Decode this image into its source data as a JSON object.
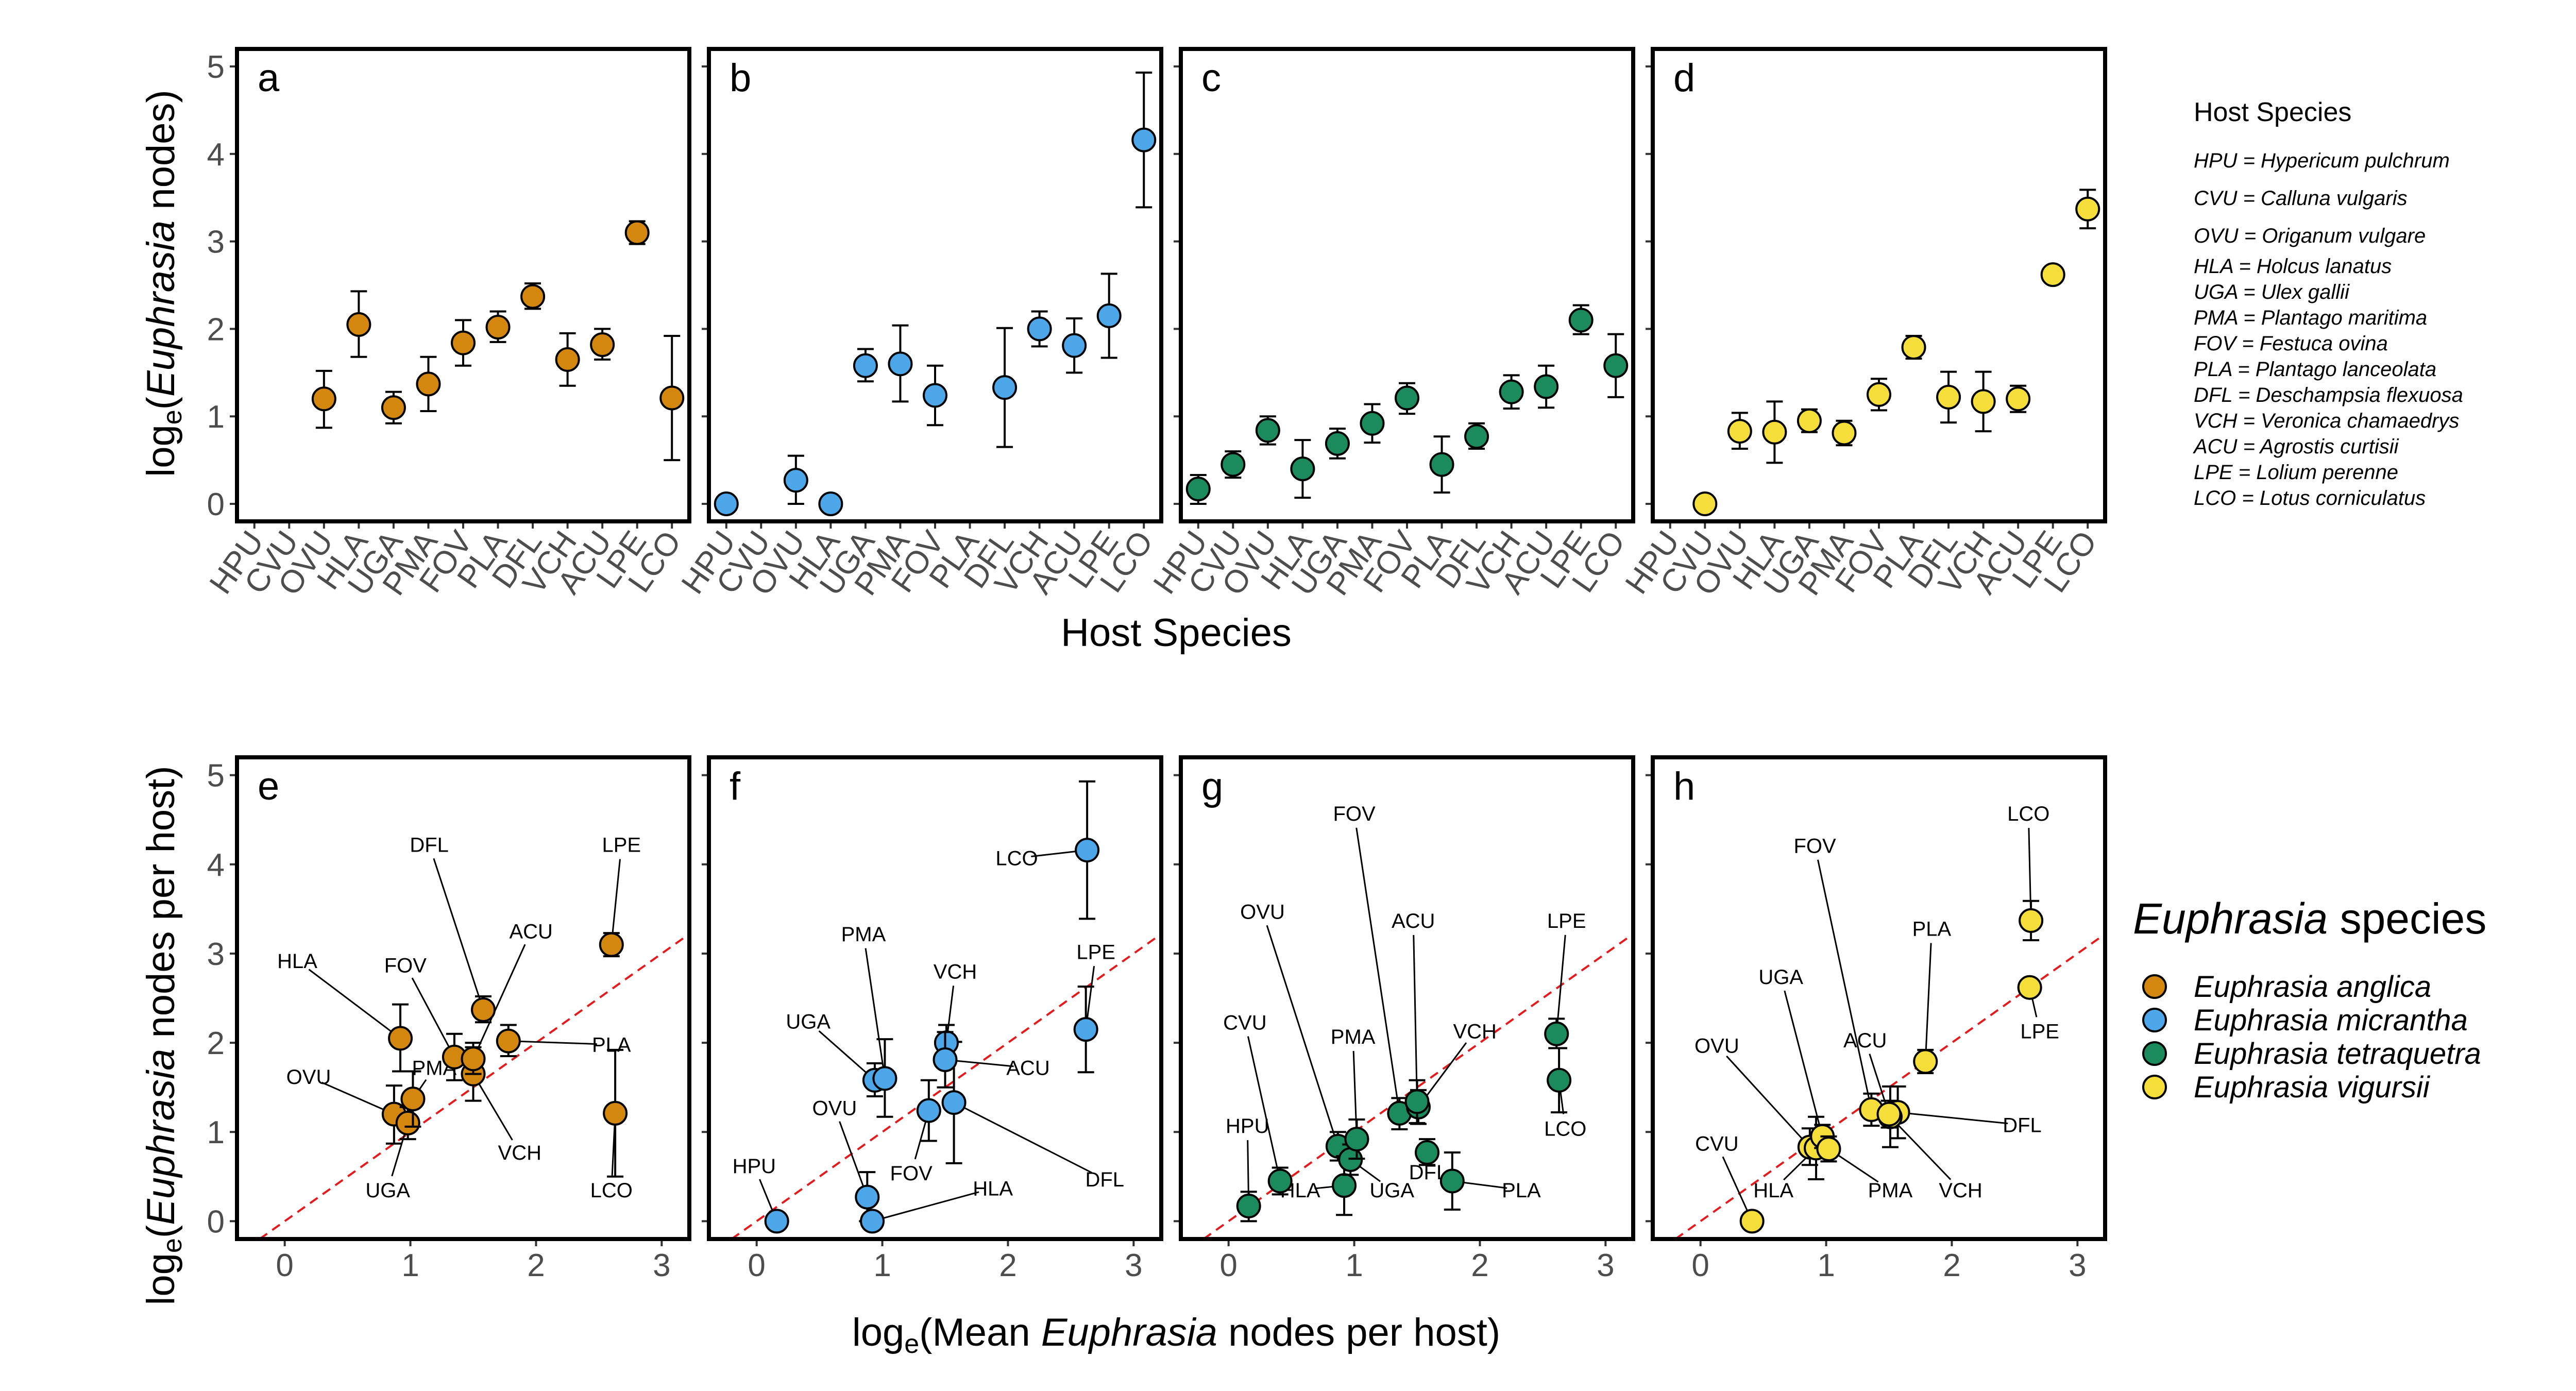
{
  "colors": {
    "anglica": "#D4870F",
    "micrantha": "#4DA6E8",
    "tetraquetra": "#1B8A5C",
    "vigursii": "#F5DE3A",
    "identity_line": "#E41A1C"
  },
  "host_legend": {
    "title": "Host Species",
    "items": [
      "HPU = Hypericum pulchrum",
      "CVU = Calluna vulgaris",
      "OVU = Origanum vulgare",
      "HLA = Holcus lanatus",
      "UGA = Ulex gallii",
      "PMA = Plantago maritima",
      "FOV = Festuca ovina",
      "PLA = Plantago lanceolata",
      "DFL = Deschampsia flexuosa",
      "VCH = Veronica chamaedrys",
      "ACU = Agrostis curtisii",
      "LPE = Lolium perenne",
      "LCO = Lotus corniculatus"
    ]
  },
  "species_legend": {
    "title_italic": "Euphrasia",
    "title_rest": " species",
    "items": [
      {
        "label": "Euphrasia anglica",
        "color_key": "anglica"
      },
      {
        "label": "Euphrasia micrantha",
        "color_key": "micrantha"
      },
      {
        "label": "Euphrasia tetraquetra",
        "color_key": "tetraquetra"
      },
      {
        "label": "Euphrasia vigursii",
        "color_key": "vigursii"
      }
    ]
  },
  "chart_data": {
    "hosts": [
      "HPU",
      "CVU",
      "OVU",
      "HLA",
      "UGA",
      "PMA",
      "FOV",
      "PLA",
      "DFL",
      "VCH",
      "ACU",
      "LPE",
      "LCO"
    ],
    "top_axes": {
      "type": "scatter",
      "ylabel_prefix": "log",
      "ylabel_sub": "e",
      "ylabel_open": "(",
      "ylabel_italic": "Euphrasia",
      "ylabel_rest": " nodes)",
      "xlabel": "Host Species",
      "ylim": [
        -0.2,
        5.2
      ],
      "yticks": [
        "0",
        "1",
        "2",
        "3",
        "4",
        "5"
      ]
    },
    "bottom_axes": {
      "type": "scatter",
      "ylabel_prefix": "log",
      "ylabel_sub": "e",
      "ylabel_open": "(",
      "ylabel_italic": "Euphrasia",
      "ylabel_rest": " nodes per host)",
      "xlabel_prefix": "log",
      "xlabel_sub": "e",
      "xlabel_open": "(Mean ",
      "xlabel_italic": "Euphrasia",
      "xlabel_rest": " nodes per host)",
      "xlim": [
        -0.38,
        3.22
      ],
      "ylim": [
        -0.2,
        5.2
      ],
      "xticks": [
        "0",
        "1",
        "2",
        "3"
      ],
      "yticks": [
        "0",
        "1",
        "2",
        "3",
        "4",
        "5"
      ],
      "reference_line": "y = x"
    },
    "panels": [
      {
        "id": "a",
        "species": "anglica",
        "kind": "category",
        "points": [
          {
            "host": "OVU",
            "y": 1.2,
            "lo": 0.87,
            "hi": 1.52
          },
          {
            "host": "HLA",
            "y": 2.05,
            "lo": 1.68,
            "hi": 2.43
          },
          {
            "host": "UGA",
            "y": 1.1,
            "lo": 0.92,
            "hi": 1.28
          },
          {
            "host": "PMA",
            "y": 1.37,
            "lo": 1.06,
            "hi": 1.68
          },
          {
            "host": "FOV",
            "y": 1.84,
            "lo": 1.58,
            "hi": 2.1
          },
          {
            "host": "PLA",
            "y": 2.02,
            "lo": 1.85,
            "hi": 2.2
          },
          {
            "host": "DFL",
            "y": 2.37,
            "lo": 2.23,
            "hi": 2.52
          },
          {
            "host": "VCH",
            "y": 1.65,
            "lo": 1.35,
            "hi": 1.95
          },
          {
            "host": "ACU",
            "y": 1.82,
            "lo": 1.65,
            "hi": 2.0
          },
          {
            "host": "LPE",
            "y": 3.1,
            "lo": 2.97,
            "hi": 3.23
          },
          {
            "host": "LCO",
            "y": 1.21,
            "lo": 0.5,
            "hi": 1.92
          }
        ]
      },
      {
        "id": "b",
        "species": "micrantha",
        "kind": "category",
        "points": [
          {
            "host": "HPU",
            "y": 0.0,
            "lo": 0.0,
            "hi": 0.0
          },
          {
            "host": "OVU",
            "y": 0.27,
            "lo": 0.0,
            "hi": 0.55
          },
          {
            "host": "HLA",
            "y": 0.0,
            "lo": 0.0,
            "hi": 0.0
          },
          {
            "host": "UGA",
            "y": 1.58,
            "lo": 1.4,
            "hi": 1.77
          },
          {
            "host": "PMA",
            "y": 1.6,
            "lo": 1.17,
            "hi": 2.04
          },
          {
            "host": "FOV",
            "y": 1.24,
            "lo": 0.9,
            "hi": 1.58
          },
          {
            "host": "DFL",
            "y": 1.33,
            "lo": 0.65,
            "hi": 2.01
          },
          {
            "host": "VCH",
            "y": 2.0,
            "lo": 1.8,
            "hi": 2.2
          },
          {
            "host": "ACU",
            "y": 1.81,
            "lo": 1.5,
            "hi": 2.12
          },
          {
            "host": "LPE",
            "y": 2.15,
            "lo": 1.67,
            "hi": 2.63
          },
          {
            "host": "LCO",
            "y": 4.16,
            "lo": 3.39,
            "hi": 4.93
          }
        ]
      },
      {
        "id": "c",
        "species": "tetraquetra",
        "kind": "category",
        "points": [
          {
            "host": "HPU",
            "y": 0.17,
            "lo": 0.0,
            "hi": 0.33
          },
          {
            "host": "CVU",
            "y": 0.45,
            "lo": 0.3,
            "hi": 0.6
          },
          {
            "host": "OVU",
            "y": 0.84,
            "lo": 0.68,
            "hi": 1.0
          },
          {
            "host": "HLA",
            "y": 0.4,
            "lo": 0.07,
            "hi": 0.73
          },
          {
            "host": "UGA",
            "y": 0.69,
            "lo": 0.52,
            "hi": 0.86
          },
          {
            "host": "PMA",
            "y": 0.92,
            "lo": 0.7,
            "hi": 1.14
          },
          {
            "host": "FOV",
            "y": 1.21,
            "lo": 1.03,
            "hi": 1.38
          },
          {
            "host": "PLA",
            "y": 0.45,
            "lo": 0.13,
            "hi": 0.77
          },
          {
            "host": "DFL",
            "y": 0.77,
            "lo": 0.63,
            "hi": 0.92
          },
          {
            "host": "VCH",
            "y": 1.28,
            "lo": 1.09,
            "hi": 1.47
          },
          {
            "host": "ACU",
            "y": 1.34,
            "lo": 1.1,
            "hi": 1.58
          },
          {
            "host": "LPE",
            "y": 2.1,
            "lo": 1.94,
            "hi": 2.27
          },
          {
            "host": "LCO",
            "y": 1.58,
            "lo": 1.22,
            "hi": 1.94
          }
        ]
      },
      {
        "id": "d",
        "species": "vigursii",
        "kind": "category",
        "points": [
          {
            "host": "CVU",
            "y": 0.0,
            "lo": 0.0,
            "hi": 0.0
          },
          {
            "host": "OVU",
            "y": 0.83,
            "lo": 0.63,
            "hi": 1.04
          },
          {
            "host": "HLA",
            "y": 0.82,
            "lo": 0.47,
            "hi": 1.17
          },
          {
            "host": "UGA",
            "y": 0.95,
            "lo": 0.82,
            "hi": 1.08
          },
          {
            "host": "PMA",
            "y": 0.81,
            "lo": 0.67,
            "hi": 0.95
          },
          {
            "host": "FOV",
            "y": 1.25,
            "lo": 1.07,
            "hi": 1.43
          },
          {
            "host": "PLA",
            "y": 1.79,
            "lo": 1.66,
            "hi": 1.92
          },
          {
            "host": "DFL",
            "y": 1.22,
            "lo": 0.93,
            "hi": 1.51
          },
          {
            "host": "VCH",
            "y": 1.17,
            "lo": 0.83,
            "hi": 1.51
          },
          {
            "host": "ACU",
            "y": 1.2,
            "lo": 1.05,
            "hi": 1.35
          },
          {
            "host": "LPE",
            "y": 2.62,
            "lo": 2.62,
            "hi": 2.62
          },
          {
            "host": "LCO",
            "y": 3.37,
            "lo": 3.15,
            "hi": 3.59
          }
        ]
      },
      {
        "id": "e",
        "species": "anglica",
        "kind": "xy",
        "points": [
          {
            "host": "OVU",
            "x": 0.87,
            "y": 1.2,
            "lo": 0.87,
            "hi": 1.52,
            "lx": 0.19,
            "ly": 1.62
          },
          {
            "host": "HLA",
            "x": 0.92,
            "y": 2.05,
            "lo": 1.68,
            "hi": 2.43,
            "lx": 0.1,
            "ly": 2.92
          },
          {
            "host": "UGA",
            "x": 0.98,
            "y": 1.1,
            "lo": 0.92,
            "hi": 1.28,
            "lx": 0.82,
            "ly": 0.35
          },
          {
            "host": "PMA",
            "x": 1.02,
            "y": 1.37,
            "lo": 1.06,
            "hi": 1.68,
            "lx": 1.19,
            "ly": 1.72
          },
          {
            "host": "FOV",
            "x": 1.35,
            "y": 1.84,
            "lo": 1.58,
            "hi": 2.1,
            "lx": 0.96,
            "ly": 2.87
          },
          {
            "host": "PLA",
            "x": 1.78,
            "y": 2.02,
            "lo": 1.85,
            "hi": 2.2,
            "lx": 2.6,
            "ly": 1.98
          },
          {
            "host": "DFL",
            "x": 1.58,
            "y": 2.37,
            "lo": 2.23,
            "hi": 2.52,
            "lx": 1.15,
            "ly": 4.22
          },
          {
            "host": "VCH",
            "x": 1.5,
            "y": 1.65,
            "lo": 1.35,
            "hi": 1.95,
            "lx": 1.87,
            "ly": 0.77
          },
          {
            "host": "ACU",
            "x": 1.5,
            "y": 1.82,
            "lo": 1.65,
            "hi": 2.0,
            "lx": 1.96,
            "ly": 3.25
          },
          {
            "host": "LPE",
            "x": 2.6,
            "y": 3.1,
            "lo": 2.97,
            "hi": 3.23,
            "lx": 2.68,
            "ly": 4.22
          },
          {
            "host": "LCO",
            "x": 2.63,
            "y": 1.21,
            "lo": 0.5,
            "hi": 1.92,
            "lx": 2.6,
            "ly": 0.35
          }
        ]
      },
      {
        "id": "f",
        "species": "micrantha",
        "kind": "xy",
        "points": [
          {
            "host": "HPU",
            "x": 0.16,
            "y": 0.0,
            "lo": 0.0,
            "hi": 0.0,
            "lx": -0.02,
            "ly": 0.62
          },
          {
            "host": "OVU",
            "x": 0.88,
            "y": 0.27,
            "lo": 0.0,
            "hi": 0.55,
            "lx": 0.62,
            "ly": 1.27
          },
          {
            "host": "HLA",
            "x": 0.92,
            "y": 0.0,
            "lo": 0.0,
            "hi": 0.0,
            "lx": 1.88,
            "ly": 0.37
          },
          {
            "host": "UGA",
            "x": 0.94,
            "y": 1.58,
            "lo": 1.4,
            "hi": 1.77,
            "lx": 0.41,
            "ly": 2.24
          },
          {
            "host": "PMA",
            "x": 1.02,
            "y": 1.6,
            "lo": 1.17,
            "hi": 2.04,
            "lx": 0.85,
            "ly": 3.22
          },
          {
            "host": "FOV",
            "x": 1.37,
            "y": 1.24,
            "lo": 0.9,
            "hi": 1.58,
            "lx": 1.23,
            "ly": 0.54
          },
          {
            "host": "DFL",
            "x": 1.57,
            "y": 1.33,
            "lo": 0.65,
            "hi": 2.01,
            "lx": 2.77,
            "ly": 0.47
          },
          {
            "host": "VCH",
            "x": 1.51,
            "y": 2.0,
            "lo": 1.8,
            "hi": 2.2,
            "lx": 1.58,
            "ly": 2.8
          },
          {
            "host": "ACU",
            "x": 1.5,
            "y": 1.81,
            "lo": 1.5,
            "hi": 2.12,
            "lx": 2.16,
            "ly": 1.72
          },
          {
            "host": "LPE",
            "x": 2.62,
            "y": 2.15,
            "lo": 1.67,
            "hi": 2.63,
            "lx": 2.7,
            "ly": 3.02
          },
          {
            "host": "LCO",
            "x": 2.63,
            "y": 4.16,
            "lo": 3.39,
            "hi": 4.93,
            "lx": 2.07,
            "ly": 4.07
          }
        ]
      },
      {
        "id": "g",
        "species": "tetraquetra",
        "kind": "xy",
        "points": [
          {
            "host": "HPU",
            "x": 0.16,
            "y": 0.17,
            "lo": 0.0,
            "hi": 0.33,
            "lx": 0.15,
            "ly": 1.07
          },
          {
            "host": "CVU",
            "x": 0.41,
            "y": 0.45,
            "lo": 0.3,
            "hi": 0.6,
            "lx": 0.13,
            "ly": 2.23
          },
          {
            "host": "OVU",
            "x": 0.87,
            "y": 0.84,
            "lo": 0.68,
            "hi": 1.0,
            "lx": 0.27,
            "ly": 3.47
          },
          {
            "host": "HLA",
            "x": 0.92,
            "y": 0.4,
            "lo": 0.07,
            "hi": 0.73,
            "lx": 0.57,
            "ly": 0.35
          },
          {
            "host": "UGA",
            "x": 0.97,
            "y": 0.69,
            "lo": 0.52,
            "hi": 0.86,
            "lx": 1.3,
            "ly": 0.35
          },
          {
            "host": "PMA",
            "x": 1.02,
            "y": 0.92,
            "lo": 0.7,
            "hi": 1.14,
            "lx": 0.99,
            "ly": 2.07
          },
          {
            "host": "FOV",
            "x": 1.36,
            "y": 1.21,
            "lo": 1.03,
            "hi": 1.38,
            "lx": 1.0,
            "ly": 4.57
          },
          {
            "host": "PLA",
            "x": 1.78,
            "y": 0.45,
            "lo": 0.13,
            "hi": 0.77,
            "lx": 2.33,
            "ly": 0.35
          },
          {
            "host": "DFL",
            "x": 1.58,
            "y": 0.77,
            "lo": 0.63,
            "hi": 0.92,
            "lx": 1.59,
            "ly": 0.55
          },
          {
            "host": "VCH",
            "x": 1.51,
            "y": 1.28,
            "lo": 1.09,
            "hi": 1.47,
            "lx": 1.96,
            "ly": 2.13
          },
          {
            "host": "ACU",
            "x": 1.5,
            "y": 1.34,
            "lo": 1.1,
            "hi": 1.58,
            "lx": 1.47,
            "ly": 3.37
          },
          {
            "host": "LPE",
            "x": 2.61,
            "y": 2.1,
            "lo": 1.94,
            "hi": 2.27,
            "lx": 2.69,
            "ly": 3.37
          },
          {
            "host": "LCO",
            "x": 2.63,
            "y": 1.58,
            "lo": 1.22,
            "hi": 1.94,
            "lx": 2.68,
            "ly": 1.04
          }
        ]
      },
      {
        "id": "h",
        "species": "vigursii",
        "kind": "xy",
        "points": [
          {
            "host": "CVU",
            "x": 0.41,
            "y": 0.0,
            "lo": 0.0,
            "hi": 0.0,
            "lx": 0.13,
            "ly": 0.87
          },
          {
            "host": "OVU",
            "x": 0.87,
            "y": 0.83,
            "lo": 0.63,
            "hi": 1.04,
            "lx": 0.13,
            "ly": 1.97
          },
          {
            "host": "HLA",
            "x": 0.92,
            "y": 0.82,
            "lo": 0.47,
            "hi": 1.17,
            "lx": 0.58,
            "ly": 0.35
          },
          {
            "host": "UGA",
            "x": 0.97,
            "y": 0.95,
            "lo": 0.82,
            "hi": 1.08,
            "lx": 0.64,
            "ly": 2.74
          },
          {
            "host": "PMA",
            "x": 1.02,
            "y": 0.81,
            "lo": 0.67,
            "hi": 0.95,
            "lx": 1.51,
            "ly": 0.35
          },
          {
            "host": "FOV",
            "x": 1.36,
            "y": 1.25,
            "lo": 1.07,
            "hi": 1.43,
            "lx": 0.91,
            "ly": 4.21
          },
          {
            "host": "PLA",
            "x": 1.79,
            "y": 1.79,
            "lo": 1.66,
            "hi": 1.92,
            "lx": 1.84,
            "ly": 3.28
          },
          {
            "host": "DFL",
            "x": 1.57,
            "y": 1.22,
            "lo": 0.93,
            "hi": 1.51,
            "lx": 2.56,
            "ly": 1.08
          },
          {
            "host": "VCH",
            "x": 1.51,
            "y": 1.17,
            "lo": 0.83,
            "hi": 1.51,
            "lx": 2.07,
            "ly": 0.35
          },
          {
            "host": "ACU",
            "x": 1.5,
            "y": 1.2,
            "lo": 1.05,
            "hi": 1.35,
            "lx": 1.31,
            "ly": 2.03
          },
          {
            "host": "LPE",
            "x": 2.62,
            "y": 2.62,
            "lo": 2.62,
            "hi": 2.62,
            "lx": 2.7,
            "ly": 2.13
          },
          {
            "host": "LCO",
            "x": 2.63,
            "y": 3.37,
            "lo": 3.15,
            "hi": 3.59,
            "lx": 2.61,
            "ly": 4.57
          }
        ]
      }
    ]
  }
}
